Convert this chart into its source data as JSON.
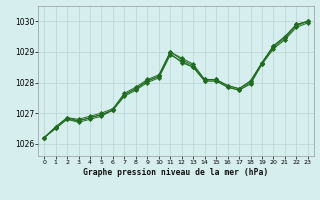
{
  "x": [
    0,
    1,
    2,
    3,
    4,
    5,
    6,
    7,
    8,
    9,
    10,
    11,
    12,
    13,
    14,
    15,
    16,
    17,
    18,
    19,
    20,
    21,
    22,
    23
  ],
  "series": [
    [
      1026.2,
      1026.5,
      1026.8,
      1026.75,
      1026.85,
      1026.95,
      1027.1,
      1027.55,
      1027.75,
      1028.0,
      1028.15,
      1028.9,
      1028.7,
      1028.5,
      1028.05,
      1028.05,
      1027.85,
      1027.75,
      1027.95,
      1028.6,
      1029.1,
      1029.4,
      1029.8,
      1029.95
    ],
    [
      1026.2,
      1026.5,
      1026.8,
      1026.7,
      1026.8,
      1026.9,
      1027.1,
      1027.6,
      1027.8,
      1028.05,
      1028.2,
      1029.0,
      1028.8,
      1028.6,
      1028.1,
      1028.1,
      1027.9,
      1027.8,
      1028.05,
      1028.65,
      1029.2,
      1029.5,
      1029.9,
      1030.0
    ],
    [
      1026.2,
      1026.55,
      1026.85,
      1026.8,
      1026.9,
      1027.0,
      1027.15,
      1027.65,
      1027.85,
      1028.1,
      1028.25,
      1029.0,
      1028.75,
      1028.55,
      1028.1,
      1028.1,
      1027.9,
      1027.8,
      1028.05,
      1028.65,
      1029.2,
      1029.5,
      1029.9,
      1030.0
    ],
    [
      1026.2,
      1026.55,
      1026.85,
      1026.75,
      1026.85,
      1026.95,
      1027.1,
      1027.6,
      1027.8,
      1028.05,
      1028.2,
      1028.95,
      1028.65,
      1028.5,
      1028.05,
      1028.05,
      1027.85,
      1027.75,
      1028.0,
      1028.6,
      1029.15,
      1029.45,
      1029.85,
      1030.0
    ]
  ],
  "line_color": "#1f6b1f",
  "marker": "D",
  "marker_size": 2.2,
  "bg_color": "#d6eeed",
  "grid_color": "#b8d4d2",
  "xlabel": "Graphe pression niveau de la mer (hPa)",
  "ylim": [
    1025.6,
    1030.5
  ],
  "xlim": [
    -0.5,
    23.5
  ],
  "yticks": [
    1026,
    1027,
    1028,
    1029,
    1030
  ],
  "xticks": [
    0,
    1,
    2,
    3,
    4,
    5,
    6,
    7,
    8,
    9,
    10,
    11,
    12,
    13,
    14,
    15,
    16,
    17,
    18,
    19,
    20,
    21,
    22,
    23
  ],
  "fig_width": 3.2,
  "fig_height": 2.0,
  "dpi": 100
}
